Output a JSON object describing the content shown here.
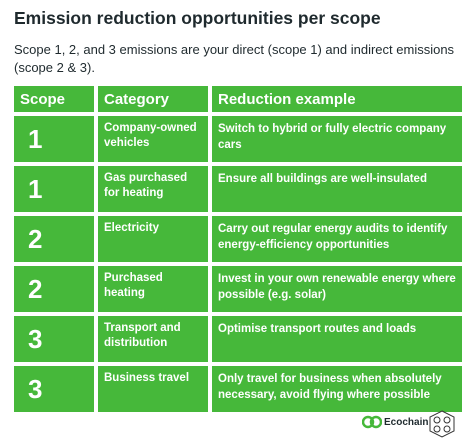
{
  "header": {
    "title": "Emission reduction opportunities per scope",
    "subtitle": "Scope 1, 2, and 3 emissions are your direct (scope 1) and indirect emissions (scope 2 & 3)."
  },
  "table": {
    "columns": [
      "Scope",
      "Category",
      "Reduction example"
    ],
    "rows": [
      [
        "1",
        "Company-owned vehicles",
        "Switch to hybrid or fully electric company cars"
      ],
      [
        "1",
        "Gas purchased for heating",
        "Ensure all buildings are well-insulated"
      ],
      [
        "2",
        "Electricity",
        "Carry out regular energy audits to identify energy-efficiency opportunities"
      ],
      [
        "2",
        "Purchased heating",
        "Invest in your own renewable energy where possible (e.g. solar)"
      ],
      [
        "3",
        "Transport and distribution",
        "Optimise transport routes and loads"
      ],
      [
        "3",
        "Business travel",
        "Only travel for business when absolutely necessary, avoid flying where possible"
      ]
    ]
  },
  "footer": {
    "brand": "Ecochain"
  }
}
